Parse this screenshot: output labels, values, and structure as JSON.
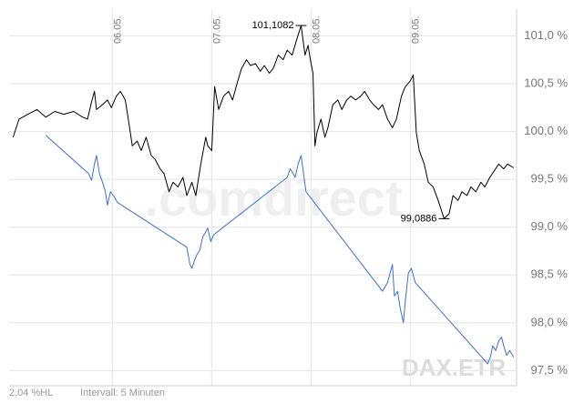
{
  "chart_data": {
    "type": "line",
    "watermark": ".comdirect",
    "source": "DAX.ETR",
    "footer": [
      "2,04 %HL",
      "Intervall: 5 Minuten"
    ],
    "xlim": [
      -1.04,
      4.07
    ],
    "xticks": [
      {
        "value": 0,
        "label": "06.05."
      },
      {
        "value": 1,
        "label": "07.05."
      },
      {
        "value": 2,
        "label": "08.05."
      },
      {
        "value": 3,
        "label": "09.05."
      }
    ],
    "ylim": [
      97.38,
      101.28
    ],
    "yticks": [
      {
        "value": 97.5,
        "label": "97,5 %"
      },
      {
        "value": 98,
        "label": "98,0 %"
      },
      {
        "value": 98.5,
        "label": "98,5 %"
      },
      {
        "value": 99,
        "label": "99,0 %"
      },
      {
        "value": 99.5,
        "label": "99,5 %"
      },
      {
        "value": 100,
        "label": "100,0 %"
      },
      {
        "value": 100.5,
        "label": "100,5 %"
      },
      {
        "value": 101,
        "label": "101,0 %"
      }
    ],
    "grid": true,
    "annotations": [
      {
        "label": "101,1082",
        "value": 101.1082,
        "x": 1.9
      },
      {
        "label": "99,0886",
        "value": 99.0886,
        "x": 3.34
      }
    ],
    "series": [
      {
        "color": "#000000",
        "x": [
          -1.0,
          -0.94,
          -0.85,
          -0.76,
          -0.67,
          -0.58,
          -0.49,
          -0.39,
          -0.3,
          -0.25,
          -0.21,
          -0.18,
          -0.16,
          -0.1,
          -0.05,
          -0.01,
          0.04,
          0.08,
          0.13,
          0.16,
          0.2,
          0.25,
          0.29,
          0.34,
          0.39,
          0.43,
          0.48,
          0.52,
          0.57,
          0.61,
          0.66,
          0.71,
          0.75,
          0.8,
          0.84,
          0.89,
          0.94,
          0.96,
          1.0,
          1.03,
          1.07,
          1.12,
          1.17,
          1.21,
          1.26,
          1.3,
          1.35,
          1.39,
          1.44,
          1.49,
          1.53,
          1.58,
          1.62,
          1.67,
          1.72,
          1.76,
          1.81,
          1.85,
          1.9,
          1.94,
          1.97,
          2.0,
          2.02,
          2.04,
          2.06,
          2.1,
          2.14,
          2.17,
          2.22,
          2.27,
          2.31,
          2.36,
          2.4,
          2.45,
          2.5,
          2.54,
          2.59,
          2.63,
          2.68,
          2.72,
          2.77,
          2.82,
          2.86,
          2.91,
          2.95,
          3.0,
          3.03,
          3.06,
          3.09,
          3.14,
          3.18,
          3.23,
          3.28,
          3.34,
          3.39,
          3.43,
          3.48,
          3.52,
          3.57,
          3.61,
          3.66,
          3.71,
          3.75,
          3.8,
          3.84,
          3.89,
          3.94,
          3.98,
          4.04
        ],
        "values": [
          99.94,
          100.13,
          100.18,
          100.23,
          100.15,
          100.21,
          100.18,
          100.21,
          100.15,
          100.13,
          100.31,
          100.42,
          100.23,
          100.28,
          100.33,
          100.25,
          100.37,
          100.42,
          100.33,
          100.13,
          99.85,
          99.9,
          99.8,
          99.94,
          99.75,
          99.71,
          99.61,
          99.56,
          99.37,
          99.47,
          99.42,
          99.52,
          99.33,
          99.47,
          99.33,
          99.66,
          99.94,
          99.85,
          99.8,
          100.47,
          100.23,
          100.37,
          100.42,
          100.33,
          100.52,
          100.66,
          100.75,
          100.69,
          100.71,
          100.63,
          100.69,
          100.61,
          100.66,
          100.8,
          100.75,
          100.85,
          100.8,
          100.94,
          101.11,
          100.8,
          100.9,
          100.71,
          100.61,
          99.85,
          99.99,
          100.13,
          99.94,
          100.04,
          100.28,
          100.33,
          100.23,
          100.33,
          100.37,
          100.33,
          100.37,
          100.42,
          100.33,
          100.28,
          100.23,
          100.28,
          100.13,
          100.04,
          100.13,
          100.37,
          100.47,
          100.53,
          100.59,
          99.99,
          99.8,
          99.66,
          99.47,
          99.42,
          99.28,
          99.09,
          99.14,
          99.33,
          99.28,
          99.37,
          99.33,
          99.42,
          99.37,
          99.47,
          99.42,
          99.52,
          99.58,
          99.66,
          99.61,
          99.66,
          99.62
        ]
      },
      {
        "color": "#3a6fd8",
        "x": [
          -0.67,
          -0.24,
          -0.21,
          -0.18,
          -0.16,
          -0.13,
          -0.1,
          -0.07,
          -0.05,
          -0.02,
          0.01,
          0.05,
          0.75,
          0.78,
          0.8,
          0.83,
          0.85,
          0.88,
          0.91,
          0.94,
          0.96,
          0.99,
          1.02,
          1.76,
          1.79,
          1.82,
          1.84,
          1.87,
          1.9,
          1.93,
          1.95,
          2.72,
          2.77,
          2.82,
          2.84,
          2.87,
          2.9,
          2.93,
          2.95,
          2.98,
          3.01,
          3.05,
          3.78,
          3.81,
          3.83,
          3.86,
          3.89,
          3.92,
          3.94,
          3.97,
          4.0,
          4.04
        ],
        "values": [
          99.96,
          99.56,
          99.49,
          99.66,
          99.75,
          99.56,
          99.47,
          99.37,
          99.23,
          99.37,
          99.33,
          99.26,
          98.79,
          98.61,
          98.57,
          98.66,
          98.71,
          98.76,
          98.9,
          98.95,
          98.99,
          98.85,
          98.92,
          99.52,
          99.61,
          99.56,
          99.52,
          99.66,
          99.75,
          99.52,
          99.37,
          98.33,
          98.42,
          98.61,
          98.28,
          98.33,
          98.14,
          98.0,
          98.23,
          98.52,
          98.57,
          98.42,
          97.57,
          97.66,
          97.76,
          97.71,
          97.81,
          97.85,
          97.76,
          97.66,
          97.71,
          97.64
        ]
      }
    ]
  }
}
